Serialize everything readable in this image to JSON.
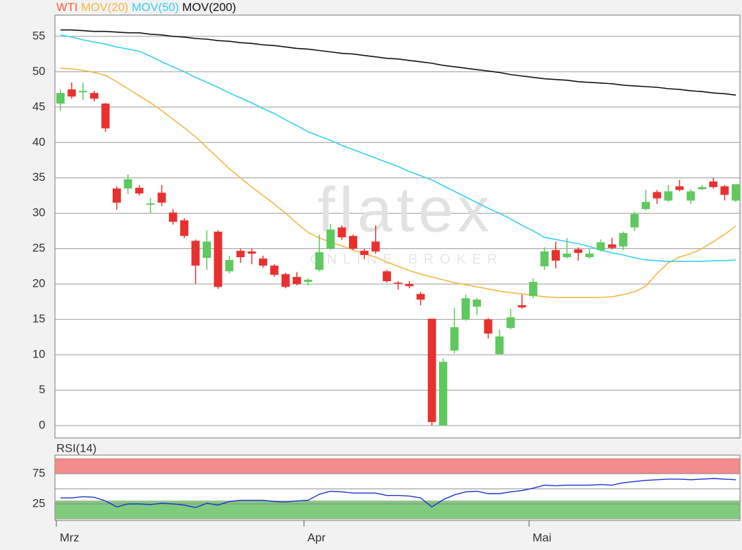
{
  "chart_data": [
    {
      "type": "candlestick",
      "categories": [
        "Mrz",
        null,
        null,
        null,
        null,
        null,
        null,
        null,
        null,
        null,
        null,
        null,
        null,
        null,
        null,
        null,
        null,
        null,
        null,
        null,
        null,
        null,
        "Apr",
        null,
        null,
        null,
        null,
        null,
        null,
        null,
        null,
        null,
        null,
        null,
        null,
        null,
        null,
        null,
        null,
        null,
        null,
        null,
        "Mai",
        null,
        null,
        null,
        null,
        null,
        null,
        null,
        null,
        null,
        null,
        null,
        null,
        null,
        null,
        null,
        null,
        null,
        null
      ],
      "ohlc": {
        "name": "WTI",
        "color": "#ff5a3c",
        "up_color": "#5ec95e",
        "down_color": "#e8312f",
        "open": [
          45.5,
          47.5,
          47.1,
          47,
          45.5,
          33.5,
          33.5,
          33.6,
          31.2,
          32.9,
          30.1,
          29,
          26.1,
          23.7,
          27.4,
          21.8,
          24.7,
          24.6,
          23.6,
          22.6,
          21.4,
          21,
          20.3,
          22,
          25,
          28,
          26.8,
          24.7,
          26,
          21.8,
          20.2,
          20,
          18.6,
          15.1,
          0,
          10.6,
          15,
          16.8,
          15,
          10.1,
          13.8,
          17,
          18.3,
          22.5,
          24.8,
          23.8,
          24.9,
          23.8,
          24.8,
          25.6,
          25.3,
          28,
          30.6,
          33,
          31.8,
          33.8,
          31.8,
          33.4,
          34.5,
          33.8,
          31.8
        ],
        "high": [
          47.5,
          48.5,
          48.5,
          47.3,
          45.6,
          33.8,
          35.5,
          34,
          32.2,
          34,
          30.6,
          29.3,
          26.3,
          27.6,
          27.6,
          24,
          25,
          25,
          24,
          22.8,
          21.6,
          21.7,
          20.8,
          27,
          28.5,
          28.3,
          27,
          25,
          28.3,
          22,
          20.4,
          20.4,
          18.9,
          15.1,
          9.5,
          16.6,
          18.5,
          18,
          15.2,
          13.6,
          16.5,
          18.5,
          20.8,
          25.2,
          26,
          26.5,
          25.2,
          25,
          26.3,
          26.5,
          27.4,
          30.2,
          33.3,
          33.3,
          34,
          34.7,
          33.4,
          34,
          35,
          34,
          34.1
        ],
        "low": [
          44.5,
          46.2,
          46,
          45.8,
          41.5,
          30.5,
          32.7,
          32.5,
          30,
          31,
          28.4,
          26.5,
          20,
          22,
          19.3,
          21.5,
          23,
          22.8,
          22.3,
          21,
          19.4,
          19.8,
          19.8,
          21.8,
          24.8,
          26.2,
          24.8,
          23.5,
          24.3,
          20.2,
          19.2,
          19.4,
          17,
          0,
          0,
          10.2,
          14.8,
          15.6,
          12.3,
          10.1,
          13.6,
          16.5,
          18,
          22,
          22.2,
          23.6,
          23.3,
          23.6,
          24.6,
          24.9,
          24.8,
          27.5,
          30.4,
          31.3,
          31.6,
          33.1,
          31.3,
          33.3,
          33.5,
          31.8,
          31.6
        ],
        "close": [
          47,
          46.5,
          47.3,
          46.2,
          42,
          31.5,
          34.8,
          32.8,
          31.4,
          31.5,
          28.8,
          26.8,
          22.6,
          26,
          19.6,
          23.4,
          23.8,
          24.3,
          22.6,
          21.3,
          19.6,
          20,
          20.6,
          24.5,
          27.7,
          26.6,
          25,
          24.1,
          24.6,
          20.4,
          20.1,
          19.7,
          17.8,
          0.5,
          9,
          13.9,
          18,
          17.8,
          13,
          12.6,
          15.3,
          16.7,
          20.3,
          24.6,
          23.3,
          24.3,
          24.4,
          24.3,
          25.9,
          25.1,
          27.2,
          29.9,
          31.6,
          32.1,
          33.1,
          33.3,
          33.1,
          33.7,
          33.7,
          32.6,
          34.1
        ]
      },
      "series": [
        {
          "name": "MOV(20)",
          "color": "#f5b642",
          "values": [
            50.5,
            50.4,
            50.2,
            49.9,
            49.5,
            48.6,
            47.6,
            46.6,
            45.6,
            44.5,
            43.3,
            42.1,
            40.8,
            39.3,
            37.8,
            36.3,
            35,
            33.7,
            32.5,
            31.3,
            30,
            28.6,
            27.3,
            26.5,
            25.9,
            25.4,
            24.8,
            24.3,
            23.8,
            23.1,
            22.5,
            21.9,
            21.4,
            21,
            20.6,
            20.2,
            19.9,
            19.6,
            19.3,
            19,
            18.8,
            18.6,
            18.4,
            18.2,
            18.1,
            18.1,
            18.1,
            18.1,
            18.1,
            18.2,
            18.5,
            18.9,
            19.7,
            21.5,
            23,
            23.8,
            24.3,
            25,
            26,
            27,
            28.2
          ]
        },
        {
          "name": "MOV(50)",
          "color": "#33d0ee",
          "values": [
            55.2,
            54.9,
            54.5,
            54.2,
            53.9,
            53.5,
            53.2,
            52.9,
            52.2,
            51.4,
            50.7,
            50,
            49.2,
            48.5,
            47.8,
            47,
            46.3,
            45.6,
            44.8,
            44.1,
            43.2,
            42.4,
            41.5,
            40.9,
            40.3,
            39.6,
            39,
            38.4,
            37.8,
            37.2,
            36.6,
            35.9,
            35.3,
            34.7,
            33.9,
            33.1,
            32.3,
            31.5,
            30.7,
            30,
            29.2,
            28.3,
            27.5,
            26.6,
            26.3,
            26,
            25.7,
            25.3,
            24.8,
            24.4,
            24.1,
            23.7,
            23.4,
            23.3,
            23.2,
            23.2,
            23.2,
            23.2,
            23.3,
            23.3,
            23.4
          ]
        },
        {
          "name": "MOV(200)",
          "color": "#111111",
          "values": [
            55.9,
            55.9,
            55.8,
            55.7,
            55.7,
            55.6,
            55.5,
            55.5,
            55.3,
            55.2,
            55,
            54.9,
            54.7,
            54.6,
            54.4,
            54.3,
            54.1,
            54,
            53.8,
            53.7,
            53.5,
            53.3,
            53.2,
            53,
            52.8,
            52.6,
            52.5,
            52.3,
            52.1,
            51.9,
            51.8,
            51.6,
            51.4,
            51.2,
            50.9,
            50.7,
            50.5,
            50.3,
            50.1,
            49.9,
            49.6,
            49.4,
            49.2,
            49,
            48.9,
            48.8,
            48.6,
            48.5,
            48.4,
            48.3,
            48.1,
            48,
            47.9,
            47.8,
            47.6,
            47.5,
            47.3,
            47.2,
            47,
            46.9,
            46.7
          ]
        }
      ],
      "ylim": [
        -1.75,
        58
      ],
      "yticks": [
        0,
        5,
        10,
        15,
        20,
        25,
        30,
        35,
        40,
        45,
        50,
        55
      ],
      "grid": true,
      "watermark": {
        "title": "flatex",
        "subtitle": "ONLINE BROKER"
      }
    },
    {
      "type": "line",
      "series": [
        {
          "name": "RSI(14)",
          "color": "#1f2fd0",
          "values": [
            35,
            35,
            37,
            36,
            30,
            20,
            25,
            25,
            24,
            26,
            25,
            23,
            19,
            26,
            23,
            29,
            31,
            31,
            31,
            29,
            28,
            30,
            31,
            41,
            46,
            45,
            43,
            43,
            43,
            39,
            39,
            38,
            35,
            20,
            32,
            40,
            45,
            46,
            42,
            42,
            45,
            47,
            51,
            56,
            55,
            56,
            56,
            56,
            57,
            56,
            60,
            62,
            64,
            65,
            66,
            66,
            65,
            66,
            67,
            66,
            65
          ]
        }
      ],
      "ylim": [
        -2.3,
        105.7
      ],
      "yticks": [
        25,
        75
      ],
      "grid_lines": [
        25,
        50,
        75
      ],
      "bands": [
        {
          "range": [
            75,
            100
          ],
          "color": "#f28b8b"
        },
        {
          "range": [
            0,
            30
          ],
          "color": "#7fcc7f"
        }
      ]
    }
  ]
}
